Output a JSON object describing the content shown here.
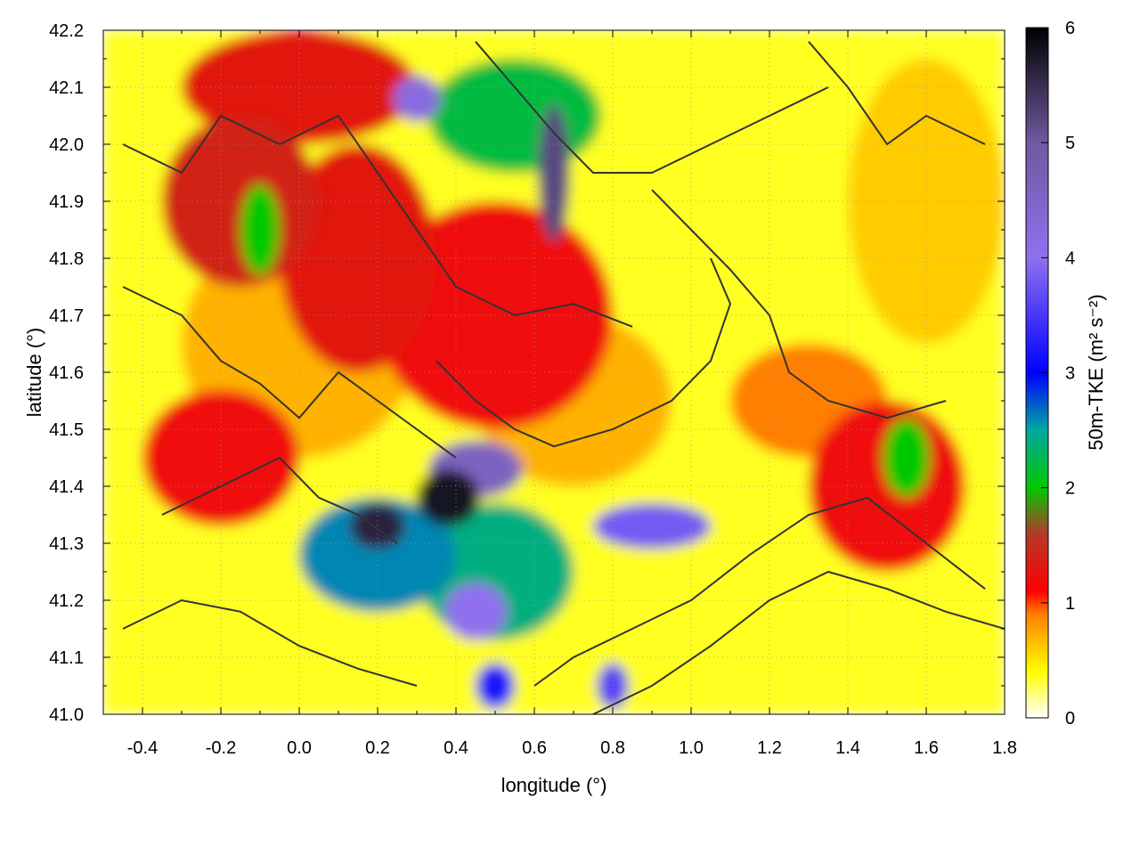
{
  "chart_data": {
    "type": "heatmap",
    "title": "",
    "xlabel": "longitude (°)",
    "ylabel": "latitude (°)",
    "colorbar_label": "50m-TKE (m² s⁻²)",
    "xlim": [
      -0.5,
      1.8
    ],
    "ylim": [
      41.0,
      42.2
    ],
    "zlim": [
      0,
      6
    ],
    "x_ticks": [
      "-0.4",
      "-0.2",
      "0.0",
      "0.2",
      "0.4",
      "0.6",
      "0.8",
      "1.0",
      "1.2",
      "1.4",
      "1.6",
      "1.8"
    ],
    "y_ticks": [
      "41.0",
      "41.1",
      "41.2",
      "41.3",
      "41.4",
      "41.5",
      "41.6",
      "41.7",
      "41.8",
      "41.9",
      "42.0",
      "42.1",
      "42.2"
    ],
    "cb_ticks": [
      "0",
      "1",
      "2",
      "3",
      "4",
      "5",
      "6"
    ],
    "grid": true,
    "colormap": [
      {
        "v": 0,
        "c": "#ffffff"
      },
      {
        "v": 0.4,
        "c": "#ffff00"
      },
      {
        "v": 0.9,
        "c": "#ff7f00"
      },
      {
        "v": 1.1,
        "c": "#ff0000"
      },
      {
        "v": 1.6,
        "c": "#b33a2a"
      },
      {
        "v": 2.0,
        "c": "#00c800"
      },
      {
        "v": 2.5,
        "c": "#00a8a0"
      },
      {
        "v": 3.0,
        "c": "#0000ff"
      },
      {
        "v": 4.0,
        "c": "#8f70ef"
      },
      {
        "v": 5.0,
        "c": "#6f5aa0"
      },
      {
        "v": 6.0,
        "c": "#000000"
      }
    ],
    "tke_features": [
      {
        "lon": 0.38,
        "lat": 41.38,
        "value": 5.8,
        "rlon": 0.08,
        "rlat": 0.05
      },
      {
        "lon": 0.2,
        "lat": 41.33,
        "value": 5.6,
        "rlon": 0.07,
        "rlat": 0.04
      },
      {
        "lon": 0.45,
        "lat": 41.43,
        "value": 4.6,
        "rlon": 0.12,
        "rlat": 0.05
      },
      {
        "lon": 0.45,
        "lat": 41.18,
        "value": 4.0,
        "rlon": 0.08,
        "rlat": 0.05
      },
      {
        "lon": 0.65,
        "lat": 41.95,
        "value": 5.2,
        "rlon": 0.04,
        "rlat": 0.12
      },
      {
        "lon": 0.3,
        "lat": 42.08,
        "value": 4.2,
        "rlon": 0.06,
        "rlat": 0.04
      },
      {
        "lon": 0.9,
        "lat": 41.33,
        "value": 3.8,
        "rlon": 0.15,
        "rlat": 0.04
      },
      {
        "lon": 0.8,
        "lat": 41.05,
        "value": 3.6,
        "rlon": 0.04,
        "rlat": 0.04
      },
      {
        "lon": 0.5,
        "lat": 41.05,
        "value": 3.2,
        "rlon": 0.05,
        "rlat": 0.04
      },
      {
        "lon": 0.2,
        "lat": 41.28,
        "value": 2.6,
        "rlon": 0.2,
        "rlat": 0.1
      },
      {
        "lon": 0.5,
        "lat": 41.25,
        "value": 2.4,
        "rlon": 0.2,
        "rlat": 0.12
      },
      {
        "lon": 0.55,
        "lat": 42.05,
        "value": 2.2,
        "rlon": 0.22,
        "rlat": 0.1
      },
      {
        "lon": -0.1,
        "lat": 41.85,
        "value": 2.0,
        "rlon": 0.05,
        "rlat": 0.08
      },
      {
        "lon": 1.55,
        "lat": 41.45,
        "value": 2.0,
        "rlon": 0.06,
        "rlat": 0.07
      },
      {
        "lon": -0.15,
        "lat": 41.9,
        "value": 1.4,
        "rlon": 0.2,
        "rlat": 0.15
      },
      {
        "lon": 0.15,
        "lat": 41.8,
        "value": 1.3,
        "rlon": 0.2,
        "rlat": 0.2
      },
      {
        "lon": 0.5,
        "lat": 41.7,
        "value": 1.2,
        "rlon": 0.3,
        "rlat": 0.2
      },
      {
        "lon": -0.2,
        "lat": 41.45,
        "value": 1.2,
        "rlon": 0.2,
        "rlat": 0.12
      },
      {
        "lon": 0.0,
        "lat": 42.1,
        "value": 1.3,
        "rlon": 0.3,
        "rlat": 0.1
      },
      {
        "lon": 1.5,
        "lat": 41.4,
        "value": 1.2,
        "rlon": 0.2,
        "rlat": 0.15
      },
      {
        "lon": 1.3,
        "lat": 41.55,
        "value": 0.9,
        "rlon": 0.2,
        "rlat": 0.1
      },
      {
        "lon": 1.6,
        "lat": 41.9,
        "value": 0.6,
        "rlon": 0.2,
        "rlat": 0.25
      },
      {
        "lon": 0.7,
        "lat": 41.55,
        "value": 0.7,
        "rlon": 0.25,
        "rlat": 0.15
      },
      {
        "lon": 0.0,
        "lat": 41.65,
        "value": 0.7,
        "rlon": 0.3,
        "rlat": 0.2
      }
    ],
    "contours": [
      [
        [
          -0.45,
          42.0
        ],
        [
          -0.3,
          41.95
        ],
        [
          -0.2,
          42.05
        ],
        [
          -0.05,
          42.0
        ],
        [
          0.1,
          42.05
        ],
        [
          0.2,
          41.95
        ],
        [
          0.3,
          41.85
        ],
        [
          0.4,
          41.75
        ],
        [
          0.55,
          41.7
        ],
        [
          0.7,
          41.72
        ],
        [
          0.85,
          41.68
        ]
      ],
      [
        [
          -0.45,
          41.75
        ],
        [
          -0.3,
          41.7
        ],
        [
          -0.2,
          41.62
        ],
        [
          -0.1,
          41.58
        ],
        [
          0.0,
          41.52
        ],
        [
          0.1,
          41.6
        ],
        [
          0.2,
          41.55
        ],
        [
          0.3,
          41.5
        ],
        [
          0.4,
          41.45
        ]
      ],
      [
        [
          -0.35,
          41.35
        ],
        [
          -0.2,
          41.4
        ],
        [
          -0.05,
          41.45
        ],
        [
          0.05,
          41.38
        ],
        [
          0.15,
          41.35
        ],
        [
          0.25,
          41.3
        ]
      ],
      [
        [
          -0.45,
          41.15
        ],
        [
          -0.3,
          41.2
        ],
        [
          -0.15,
          41.18
        ],
        [
          0.0,
          41.12
        ],
        [
          0.15,
          41.08
        ],
        [
          0.3,
          41.05
        ]
      ],
      [
        [
          0.6,
          41.05
        ],
        [
          0.7,
          41.1
        ],
        [
          0.85,
          41.15
        ],
        [
          1.0,
          41.2
        ],
        [
          1.15,
          41.28
        ],
        [
          1.3,
          41.35
        ],
        [
          1.45,
          41.38
        ],
        [
          1.6,
          41.3
        ],
        [
          1.75,
          41.22
        ]
      ],
      [
        [
          0.75,
          41.0
        ],
        [
          0.9,
          41.05
        ],
        [
          1.05,
          41.12
        ],
        [
          1.2,
          41.2
        ],
        [
          1.35,
          41.25
        ],
        [
          1.5,
          41.22
        ],
        [
          1.65,
          41.18
        ],
        [
          1.8,
          41.15
        ]
      ],
      [
        [
          0.9,
          41.92
        ],
        [
          1.0,
          41.85
        ],
        [
          1.1,
          41.78
        ],
        [
          1.2,
          41.7
        ],
        [
          1.25,
          41.6
        ],
        [
          1.35,
          41.55
        ],
        [
          1.5,
          41.52
        ],
        [
          1.65,
          41.55
        ]
      ],
      [
        [
          0.45,
          42.18
        ],
        [
          0.55,
          42.1
        ],
        [
          0.65,
          42.02
        ],
        [
          0.75,
          41.95
        ],
        [
          0.9,
          41.95
        ],
        [
          1.05,
          42.0
        ],
        [
          1.2,
          42.05
        ],
        [
          1.35,
          42.1
        ]
      ],
      [
        [
          1.3,
          42.18
        ],
        [
          1.4,
          42.1
        ],
        [
          1.5,
          42.0
        ],
        [
          1.6,
          42.05
        ],
        [
          1.75,
          42.0
        ]
      ],
      [
        [
          0.35,
          41.62
        ],
        [
          0.45,
          41.55
        ],
        [
          0.55,
          41.5
        ],
        [
          0.65,
          41.47
        ],
        [
          0.8,
          41.5
        ],
        [
          0.95,
          41.55
        ],
        [
          1.05,
          41.62
        ],
        [
          1.1,
          41.72
        ],
        [
          1.05,
          41.8
        ]
      ]
    ]
  }
}
